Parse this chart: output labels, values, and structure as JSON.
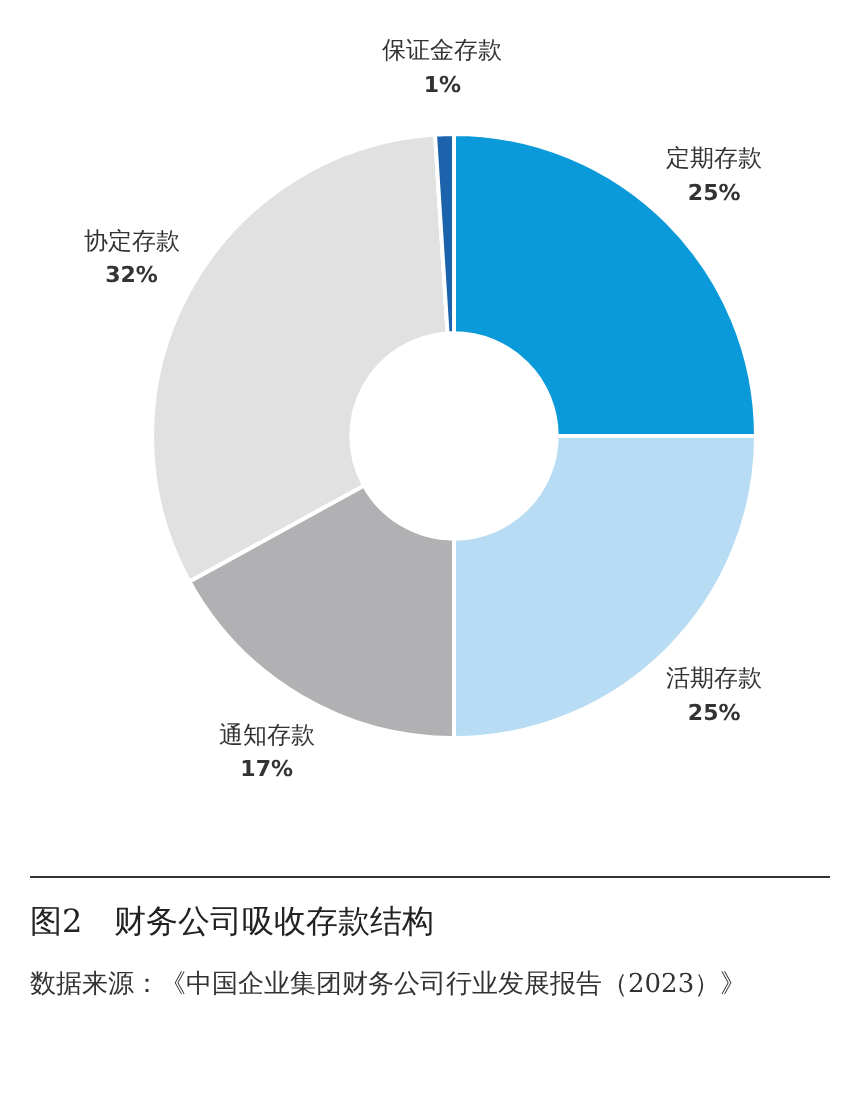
{
  "chart_data": {
    "type": "donut",
    "title": "图2　财务公司吸收存款结构",
    "categories": [
      "定期存款",
      "活期存款",
      "通知存款",
      "协定存款",
      "保证金存款"
    ],
    "values": [
      25,
      25,
      17,
      32,
      1
    ],
    "colors": [
      "#0a9ad9",
      "#b7dcf4",
      "#b1b1b3",
      "#e1e1e2",
      "#1b63ab"
    ],
    "value_labels": [
      "25%",
      "25%",
      "17%",
      "32%",
      "1%"
    ],
    "legend": false,
    "annotations": [
      "数据来源：《中国企业集团财务公司行业发展报告（2023）》"
    ]
  }
}
